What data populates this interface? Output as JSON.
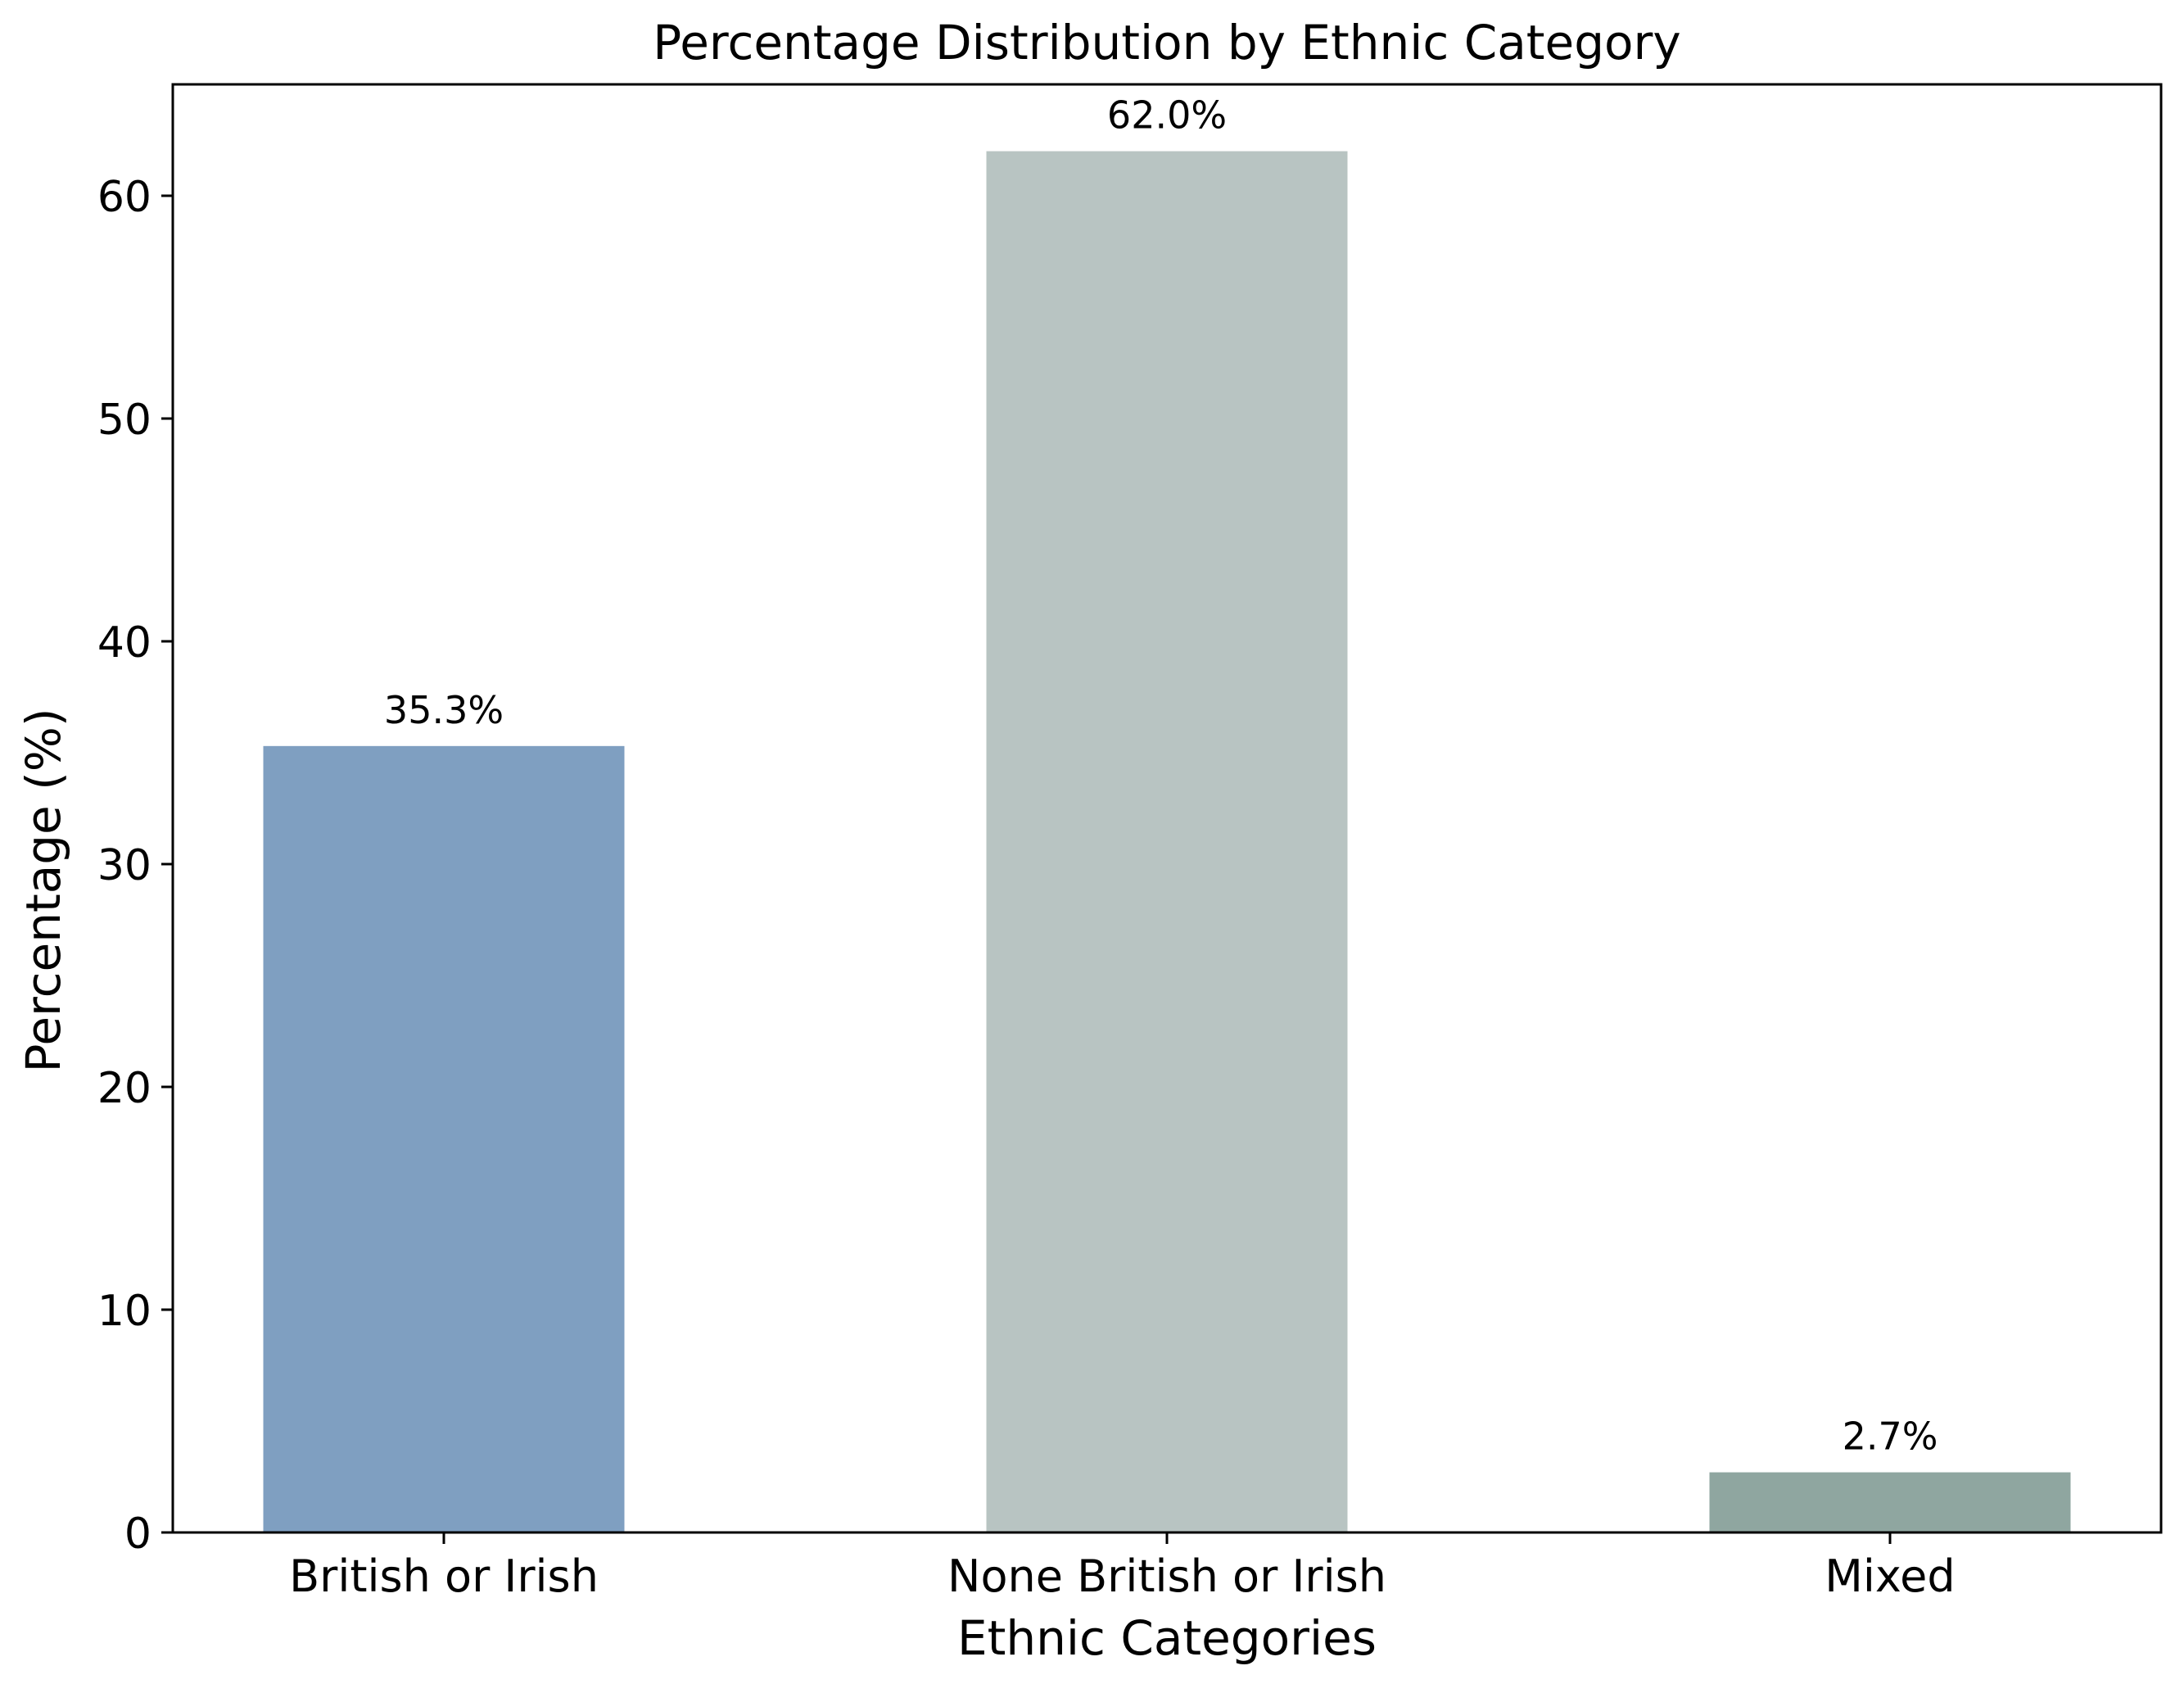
{
  "chart_data": {
    "type": "bar",
    "title": "Percentage Distribution by Ethnic Category",
    "xlabel": "Ethnic Categories",
    "ylabel": "Percentage (%)",
    "categories": [
      "British or Irish",
      "None British or Irish",
      "Mixed"
    ],
    "values": [
      35.3,
      62.0,
      2.7
    ],
    "data_labels": [
      "35.3%",
      "62.0%",
      "2.7%"
    ],
    "colors": [
      "#7f9fc1",
      "#b8c4c2",
      "#8fa6a0"
    ],
    "ylim": [
      0,
      65
    ],
    "yticks": [
      0,
      10,
      20,
      30,
      40,
      50,
      60
    ],
    "ytick_labels": [
      "0",
      "10",
      "20",
      "30",
      "40",
      "50",
      "60"
    ],
    "grid": false,
    "legend": "none"
  }
}
